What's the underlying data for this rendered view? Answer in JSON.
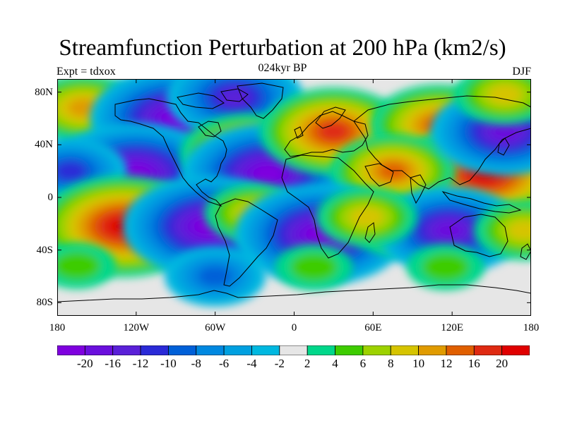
{
  "header": {
    "title": "Streamfunction Perturbation at 200 hPa (km2/s)",
    "subtitle": "024kyr BP",
    "left_label": "Expt = tdxox",
    "right_label": "DJF"
  },
  "map": {
    "projection": "cylindrical equidistant",
    "lon_range": [
      -180,
      180
    ],
    "lat_range": [
      -90,
      90
    ],
    "lat_ticks": [
      {
        "value": 80,
        "label": "80N"
      },
      {
        "value": 40,
        "label": "40N"
      },
      {
        "value": 0,
        "label": "0"
      },
      {
        "value": -40,
        "label": "40S"
      },
      {
        "value": -80,
        "label": "80S"
      }
    ],
    "lon_ticks": [
      {
        "value": -180,
        "label": "180"
      },
      {
        "value": -120,
        "label": "120W"
      },
      {
        "value": -60,
        "label": "60W"
      },
      {
        "value": 0,
        "label": "0"
      },
      {
        "value": 60,
        "label": "60E"
      },
      {
        "value": 120,
        "label": "120E"
      },
      {
        "value": 180,
        "label": "180"
      }
    ],
    "background_color": "#e6e6e6",
    "features": [
      {
        "lon": -125,
        "lat": 52,
        "value": 16
      },
      {
        "lon": -160,
        "lat": 68,
        "value": 10
      },
      {
        "lon": -90,
        "lat": 60,
        "value": -20
      },
      {
        "lon": -45,
        "lat": 76,
        "value": -14
      },
      {
        "lon": -120,
        "lat": 18,
        "value": -20
      },
      {
        "lon": -170,
        "lat": 20,
        "value": -10
      },
      {
        "lon": -35,
        "lat": 33,
        "value": 14
      },
      {
        "lon": -20,
        "lat": 18,
        "value": -20
      },
      {
        "lon": 30,
        "lat": 50,
        "value": 16
      },
      {
        "lon": 110,
        "lat": 55,
        "value": 14
      },
      {
        "lon": 145,
        "lat": 18,
        "value": 20
      },
      {
        "lon": 75,
        "lat": 20,
        "value": 12
      },
      {
        "lon": 160,
        "lat": 50,
        "value": -16
      },
      {
        "lon": 160,
        "lat": 78,
        "value": 8
      },
      {
        "lon": -130,
        "lat": -22,
        "value": 20
      },
      {
        "lon": -65,
        "lat": -22,
        "value": -20
      },
      {
        "lon": -30,
        "lat": -12,
        "value": 8
      },
      {
        "lon": 20,
        "lat": -28,
        "value": -20
      },
      {
        "lon": 80,
        "lat": -25,
        "value": 6
      },
      {
        "lon": 118,
        "lat": -25,
        "value": -16
      },
      {
        "lon": 175,
        "lat": -25,
        "value": 8
      },
      {
        "lon": 55,
        "lat": -15,
        "value": 8
      },
      {
        "lon": -60,
        "lat": -60,
        "value": -8
      },
      {
        "lon": 15,
        "lat": -53,
        "value": 4
      },
      {
        "lon": 115,
        "lat": -53,
        "value": 4
      },
      {
        "lon": -165,
        "lat": -52,
        "value": 4
      }
    ]
  },
  "colorbar": {
    "colors": [
      "#7f00df",
      "#6a0fdd",
      "#5a20d8",
      "#2a2ad7",
      "#0060d8",
      "#0088e0",
      "#00a0e0",
      "#00b8e0",
      "#e6e6e6",
      "#00d78a",
      "#3ecc00",
      "#9dd200",
      "#d6c400",
      "#e09b00",
      "#e05f00",
      "#df2a12",
      "#e00000"
    ],
    "labels": [
      "-20",
      "-16",
      "-12",
      "-10",
      "-8",
      "-6",
      "-4",
      "-2",
      "2",
      "4",
      "6",
      "8",
      "10",
      "12",
      "16",
      "20"
    ]
  }
}
